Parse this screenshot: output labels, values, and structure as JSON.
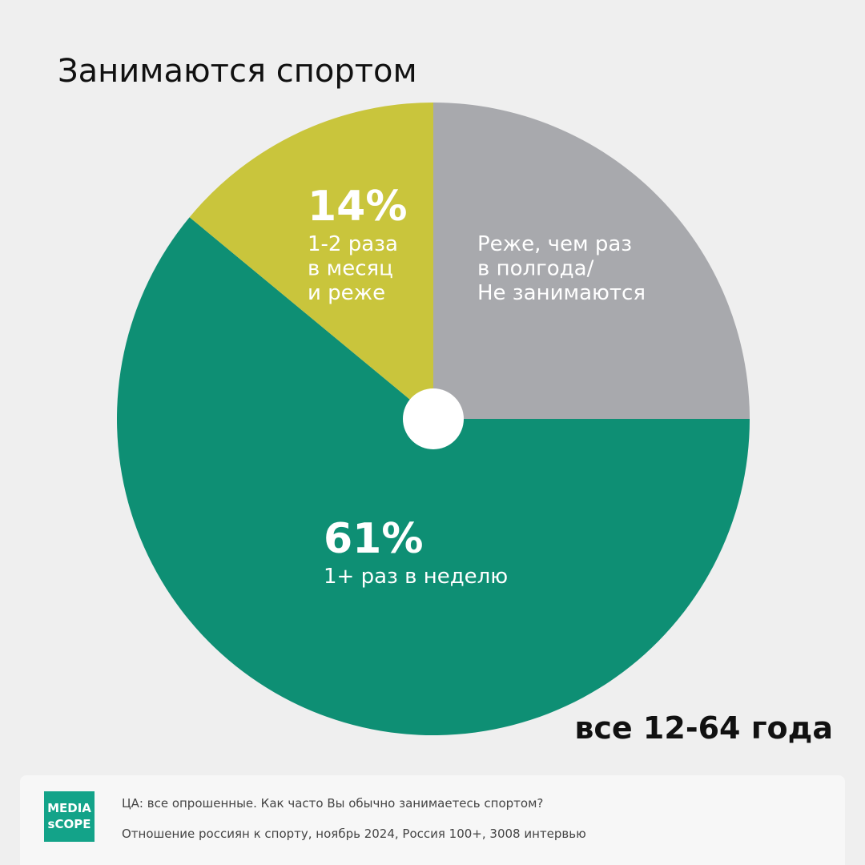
{
  "chart_data": {
    "type": "pie",
    "title": "Занимаются  спортом",
    "subtitle": "все 12-64 года",
    "categories": [
      "1+ раз в неделю",
      "1-2 раза\nв месяц\nи реже",
      "Реже, чем раз\nв полгода/\nНе занимаются"
    ],
    "values": [
      61,
      14,
      25
    ],
    "value_labels": [
      "61%",
      "14%",
      null
    ],
    "colors": [
      "#0e8f74",
      "#c9c53c",
      "#a8a9ad"
    ]
  },
  "footer": {
    "logo": [
      "MEDIA",
      "sCOPE"
    ],
    "lines": [
      "ЦА: все опрошенные. Как часто Вы обычно занимаетесь спортом?",
      "Отношение россиян к спорту, ноябрь 2024, Россия 100+, 3008 интервью"
    ]
  }
}
